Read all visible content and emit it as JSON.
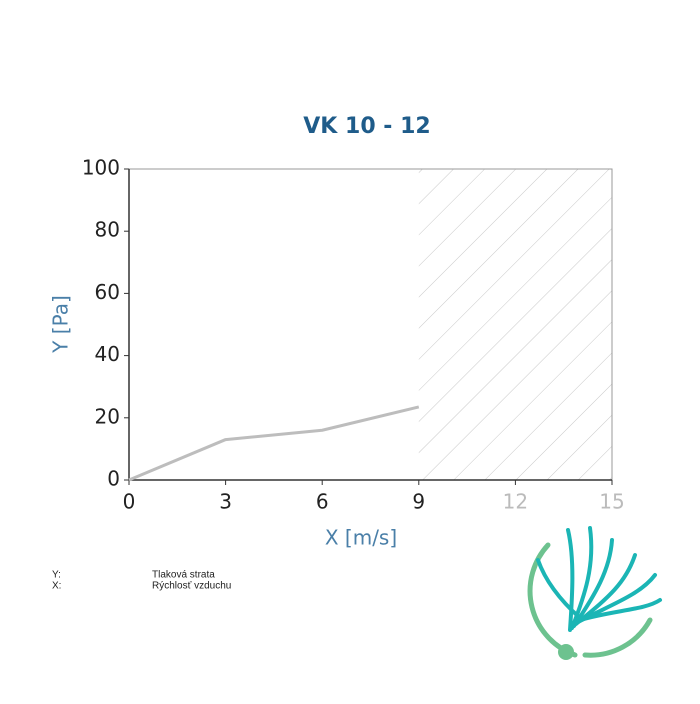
{
  "chart_data": {
    "type": "line",
    "title": "VK 10 - 12",
    "x_label": "X [m/s]",
    "y_label": "Y [Pa]",
    "x": [
      0,
      3,
      6,
      9
    ],
    "series": [
      {
        "color": "#bdbdbd",
        "values": [
          0,
          13,
          16,
          23.5
        ]
      }
    ],
    "xlim": [
      0,
      15
    ],
    "xticks": [
      0,
      3,
      6,
      9,
      12,
      15
    ],
    "ylim": [
      0,
      100
    ],
    "yticks": [
      0,
      20,
      40,
      60,
      80,
      100
    ],
    "shaded_xrange": [
      9,
      15
    ],
    "grid": false,
    "notes": [
      {
        "key": "Y:",
        "text": "Tlaková strata"
      },
      {
        "key": "X:",
        "text": "Rýchlosť vzduchu"
      }
    ]
  }
}
